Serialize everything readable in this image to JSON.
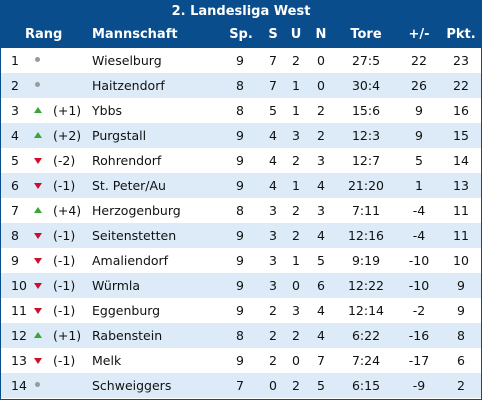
{
  "title": "2. Landesliga West",
  "headers": {
    "rang": "Rang",
    "team": "Mannschaft",
    "sp": "Sp.",
    "s": "S",
    "u": "U",
    "n": "N",
    "tore": "Tore",
    "diff": "+/-",
    "pkt": "Pkt."
  },
  "colors": {
    "header_bg": "#0a4d8c",
    "row_alt_bg": "#dcebf7",
    "up": "#3aa437",
    "down": "#c8102e",
    "same": "#9a9a9a"
  },
  "rows": [
    {
      "pos": "1",
      "trend": "same",
      "change": "",
      "team": "Wieselburg",
      "sp": "9",
      "s": "7",
      "u": "2",
      "n": "0",
      "tore": "27:5",
      "diff": "22",
      "pkt": "23"
    },
    {
      "pos": "2",
      "trend": "same",
      "change": "",
      "team": "Haitzendorf",
      "sp": "8",
      "s": "7",
      "u": "1",
      "n": "0",
      "tore": "30:4",
      "diff": "26",
      "pkt": "22"
    },
    {
      "pos": "3",
      "trend": "up",
      "change": "(+1)",
      "team": "Ybbs",
      "sp": "8",
      "s": "5",
      "u": "1",
      "n": "2",
      "tore": "15:6",
      "diff": "9",
      "pkt": "16"
    },
    {
      "pos": "4",
      "trend": "up",
      "change": "(+2)",
      "team": "Purgstall",
      "sp": "9",
      "s": "4",
      "u": "3",
      "n": "2",
      "tore": "12:3",
      "diff": "9",
      "pkt": "15"
    },
    {
      "pos": "5",
      "trend": "down",
      "change": "(-2)",
      "team": "Rohrendorf",
      "sp": "9",
      "s": "4",
      "u": "2",
      "n": "3",
      "tore": "12:7",
      "diff": "5",
      "pkt": "14"
    },
    {
      "pos": "6",
      "trend": "down",
      "change": "(-1)",
      "team": "St. Peter/Au",
      "sp": "9",
      "s": "4",
      "u": "1",
      "n": "4",
      "tore": "21:20",
      "diff": "1",
      "pkt": "13"
    },
    {
      "pos": "7",
      "trend": "up",
      "change": "(+4)",
      "team": "Herzogenburg",
      "sp": "8",
      "s": "3",
      "u": "2",
      "n": "3",
      "tore": "7:11",
      "diff": "-4",
      "pkt": "11"
    },
    {
      "pos": "8",
      "trend": "down",
      "change": "(-1)",
      "team": "Seitenstetten",
      "sp": "9",
      "s": "3",
      "u": "2",
      "n": "4",
      "tore": "12:16",
      "diff": "-4",
      "pkt": "11"
    },
    {
      "pos": "9",
      "trend": "down",
      "change": "(-1)",
      "team": "Amaliendorf",
      "sp": "9",
      "s": "3",
      "u": "1",
      "n": "5",
      "tore": "9:19",
      "diff": "-10",
      "pkt": "10"
    },
    {
      "pos": "10",
      "trend": "down",
      "change": "(-1)",
      "team": "Würmla",
      "sp": "9",
      "s": "3",
      "u": "0",
      "n": "6",
      "tore": "12:22",
      "diff": "-10",
      "pkt": "9"
    },
    {
      "pos": "11",
      "trend": "down",
      "change": "(-1)",
      "team": "Eggenburg",
      "sp": "9",
      "s": "2",
      "u": "3",
      "n": "4",
      "tore": "12:14",
      "diff": "-2",
      "pkt": "9"
    },
    {
      "pos": "12",
      "trend": "up",
      "change": "(+1)",
      "team": "Rabenstein",
      "sp": "8",
      "s": "2",
      "u": "2",
      "n": "4",
      "tore": "6:22",
      "diff": "-16",
      "pkt": "8"
    },
    {
      "pos": "13",
      "trend": "down",
      "change": "(-1)",
      "team": "Melk",
      "sp": "9",
      "s": "2",
      "u": "0",
      "n": "7",
      "tore": "7:24",
      "diff": "-17",
      "pkt": "6"
    },
    {
      "pos": "14",
      "trend": "same",
      "change": "",
      "team": "Schweiggers",
      "sp": "7",
      "s": "0",
      "u": "2",
      "n": "5",
      "tore": "6:15",
      "diff": "-9",
      "pkt": "2"
    }
  ]
}
